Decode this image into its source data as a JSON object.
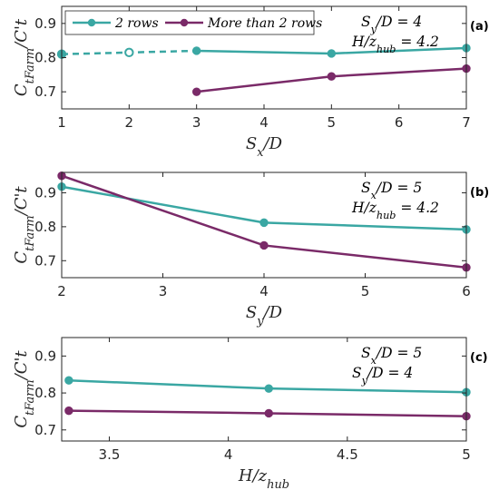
{
  "colors": {
    "two_rows": "#3aa7a3",
    "more_rows": "#7a2a68",
    "axis": "#262626"
  },
  "legend": {
    "entries": [
      "2 rows",
      "More than 2 rows"
    ]
  },
  "chart_data": [
    {
      "type": "line",
      "panel_tag": "(a)",
      "xlabel": "S_x/D",
      "ylabel": "C_tFarm/C't",
      "xlim": [
        1,
        7
      ],
      "ylim": [
        0.65,
        0.95
      ],
      "xticks": [
        1,
        2,
        3,
        4,
        5,
        6,
        7
      ],
      "yticks": [
        0.7,
        0.8,
        0.9
      ],
      "annotations": [
        "S_y/D = 4",
        "H/z_hub = 4.2"
      ],
      "series": [
        {
          "name": "2 rows",
          "color": "two_rows",
          "x": [
            3,
            5,
            7
          ],
          "y": [
            0.82,
            0.812,
            0.828
          ],
          "dashed_extension": {
            "x": [
              1,
              2,
              3
            ],
            "y": [
              0.81,
              0.815,
              0.82
            ],
            "open_markers_at": [
              2
            ]
          }
        },
        {
          "name": "More than 2 rows",
          "color": "more_rows",
          "x": [
            3,
            5,
            7
          ],
          "y": [
            0.7,
            0.745,
            0.768
          ]
        }
      ]
    },
    {
      "type": "line",
      "panel_tag": "(b)",
      "xlabel": "S_y/D",
      "ylabel": "C_tFarm/C't",
      "xlim": [
        2,
        6
      ],
      "ylim": [
        0.65,
        0.96
      ],
      "xticks": [
        2,
        3,
        4,
        5,
        6
      ],
      "yticks": [
        0.7,
        0.8,
        0.9
      ],
      "annotations": [
        "S_x/D = 5",
        "H/z_hub = 4.2"
      ],
      "series": [
        {
          "name": "2 rows",
          "color": "two_rows",
          "x": [
            2,
            4,
            6
          ],
          "y": [
            0.918,
            0.812,
            0.792
          ]
        },
        {
          "name": "More than 2 rows",
          "color": "more_rows",
          "x": [
            2,
            4,
            6
          ],
          "y": [
            0.95,
            0.745,
            0.68
          ]
        }
      ]
    },
    {
      "type": "line",
      "panel_tag": "(c)",
      "xlabel": "H/z_hub",
      "ylabel": "C_tFarm/C't",
      "xlim": [
        3.3,
        5.0
      ],
      "ylim": [
        0.67,
        0.95
      ],
      "xticks": [
        3.5,
        4,
        4.5,
        5
      ],
      "yticks": [
        0.7,
        0.8,
        0.9
      ],
      "annotations": [
        "S_x/D = 5",
        "S_y/D = 4"
      ],
      "series": [
        {
          "name": "2 rows",
          "color": "two_rows",
          "x": [
            3.33,
            4.17,
            5.0
          ],
          "y": [
            0.834,
            0.812,
            0.802
          ]
        },
        {
          "name": "More than 2 rows",
          "color": "more_rows",
          "x": [
            3.33,
            4.17,
            5.0
          ],
          "y": [
            0.752,
            0.745,
            0.737
          ]
        }
      ]
    }
  ]
}
